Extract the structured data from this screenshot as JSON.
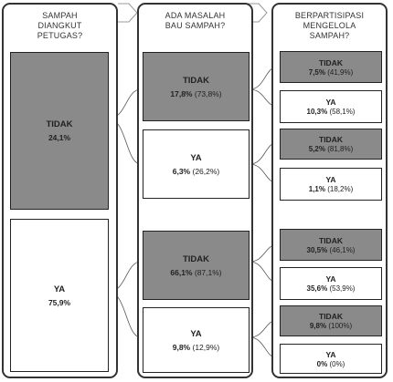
{
  "columns": [
    {
      "title": "SAMPAH\nDIANGKUT\nPETUGAS?"
    },
    {
      "title": "ADA MASALAH\nBAU SAMPAH?"
    },
    {
      "title": "BERPARTISIPASI\nMENGELOLA\nSAMPAH?"
    }
  ],
  "level1": [
    {
      "label": "TIDAK",
      "value": "24,1%",
      "sub": "",
      "shade": "dark"
    },
    {
      "label": "YA",
      "value": "75,9%",
      "sub": "",
      "shade": "light"
    }
  ],
  "level2": [
    {
      "label": "TIDAK",
      "value": "17,8%",
      "sub": "(73,8%)",
      "shade": "dark"
    },
    {
      "label": "YA",
      "value": "6,3%",
      "sub": "(26,2%)",
      "shade": "light"
    },
    {
      "label": "TIDAK",
      "value": "66,1%",
      "sub": "(87,1%)",
      "shade": "dark"
    },
    {
      "label": "YA",
      "value": "9,8%",
      "sub": "(12,9%)",
      "shade": "light"
    }
  ],
  "level3": [
    {
      "label": "TIDAK",
      "value": "7,5%",
      "sub": "(41,9%)",
      "shade": "dark"
    },
    {
      "label": "YA",
      "value": "10,3%",
      "sub": "(58,1%)",
      "shade": "light"
    },
    {
      "label": "TIDAK",
      "value": "5,2%",
      "sub": "(81,8%)",
      "shade": "dark"
    },
    {
      "label": "YA",
      "value": "1,1%",
      "sub": "(18,2%)",
      "shade": "light"
    },
    {
      "label": "TIDAK",
      "value": "30,5%",
      "sub": "(46,1%)",
      "shade": "dark"
    },
    {
      "label": "YA",
      "value": "35,6%",
      "sub": "(53,9%)",
      "shade": "light"
    },
    {
      "label": "TIDAK",
      "value": "9,8%",
      "sub": "(100%)",
      "shade": "dark"
    },
    {
      "label": "YA",
      "value": "0%",
      "sub": "(0%)",
      "shade": "light"
    }
  ],
  "colors": {
    "dark_fill": "#8a8a8a",
    "light_fill": "#ffffff",
    "border": "#222222",
    "connector": "#555555"
  }
}
